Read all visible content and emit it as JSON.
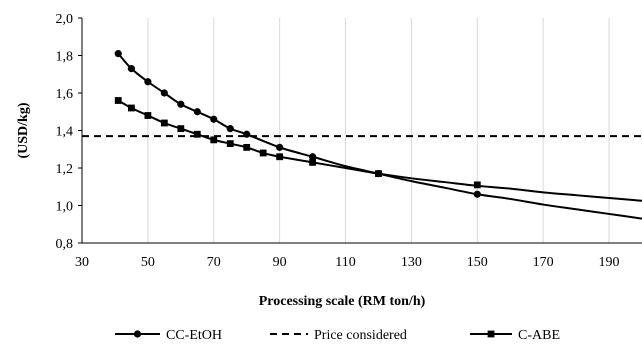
{
  "chart_data": {
    "type": "line",
    "title": "",
    "xlabel": "Processing scale (RM ton/h)",
    "ylabel": "(USD/kg)",
    "xlim": [
      30,
      200
    ],
    "ylim": [
      0.8,
      2.0
    ],
    "xticks": [
      "30",
      "50",
      "70",
      "90",
      "110",
      "130",
      "150",
      "170",
      "190"
    ],
    "yticks": [
      "0,8",
      "1,0",
      "1,2",
      "1,4",
      "1,6",
      "1,8",
      "2,0"
    ],
    "grid": "vertical",
    "legend": "bottom",
    "series": [
      {
        "name": "CC-EtOH",
        "marker": "circle",
        "style": "solid",
        "x": [
          41,
          45,
          50,
          55,
          60,
          65,
          70,
          75,
          80,
          90,
          100,
          120,
          150
        ],
        "y": [
          1.81,
          1.73,
          1.66,
          1.6,
          1.54,
          1.5,
          1.46,
          1.41,
          1.38,
          1.31,
          1.26,
          1.17,
          1.06
        ],
        "curve_x": [
          41,
          45,
          50,
          55,
          60,
          65,
          70,
          75,
          80,
          90,
          100,
          110,
          120,
          130,
          140,
          150,
          160,
          170,
          180,
          190,
          200
        ],
        "curve_y": [
          1.81,
          1.73,
          1.66,
          1.6,
          1.54,
          1.5,
          1.46,
          1.41,
          1.38,
          1.31,
          1.26,
          1.21,
          1.17,
          1.13,
          1.095,
          1.06,
          1.035,
          1.005,
          0.98,
          0.955,
          0.93
        ]
      },
      {
        "name": "Price considered",
        "style": "dashed",
        "x": [
          30,
          200
        ],
        "y": [
          1.37,
          1.37
        ]
      },
      {
        "name": "C-ABE",
        "marker": "square",
        "style": "solid",
        "x": [
          41,
          45,
          50,
          55,
          60,
          65,
          70,
          75,
          80,
          85,
          90,
          100,
          120,
          150
        ],
        "y": [
          1.56,
          1.52,
          1.48,
          1.44,
          1.41,
          1.38,
          1.35,
          1.33,
          1.31,
          1.28,
          1.26,
          1.23,
          1.17,
          1.11
        ],
        "curve_x": [
          41,
          45,
          50,
          55,
          60,
          65,
          70,
          75,
          80,
          85,
          90,
          100,
          110,
          120,
          130,
          140,
          150,
          160,
          170,
          180,
          190,
          200
        ],
        "curve_y": [
          1.56,
          1.52,
          1.48,
          1.44,
          1.41,
          1.38,
          1.35,
          1.33,
          1.31,
          1.28,
          1.26,
          1.23,
          1.2,
          1.17,
          1.145,
          1.125,
          1.105,
          1.09,
          1.07,
          1.055,
          1.04,
          1.025
        ]
      }
    ]
  }
}
